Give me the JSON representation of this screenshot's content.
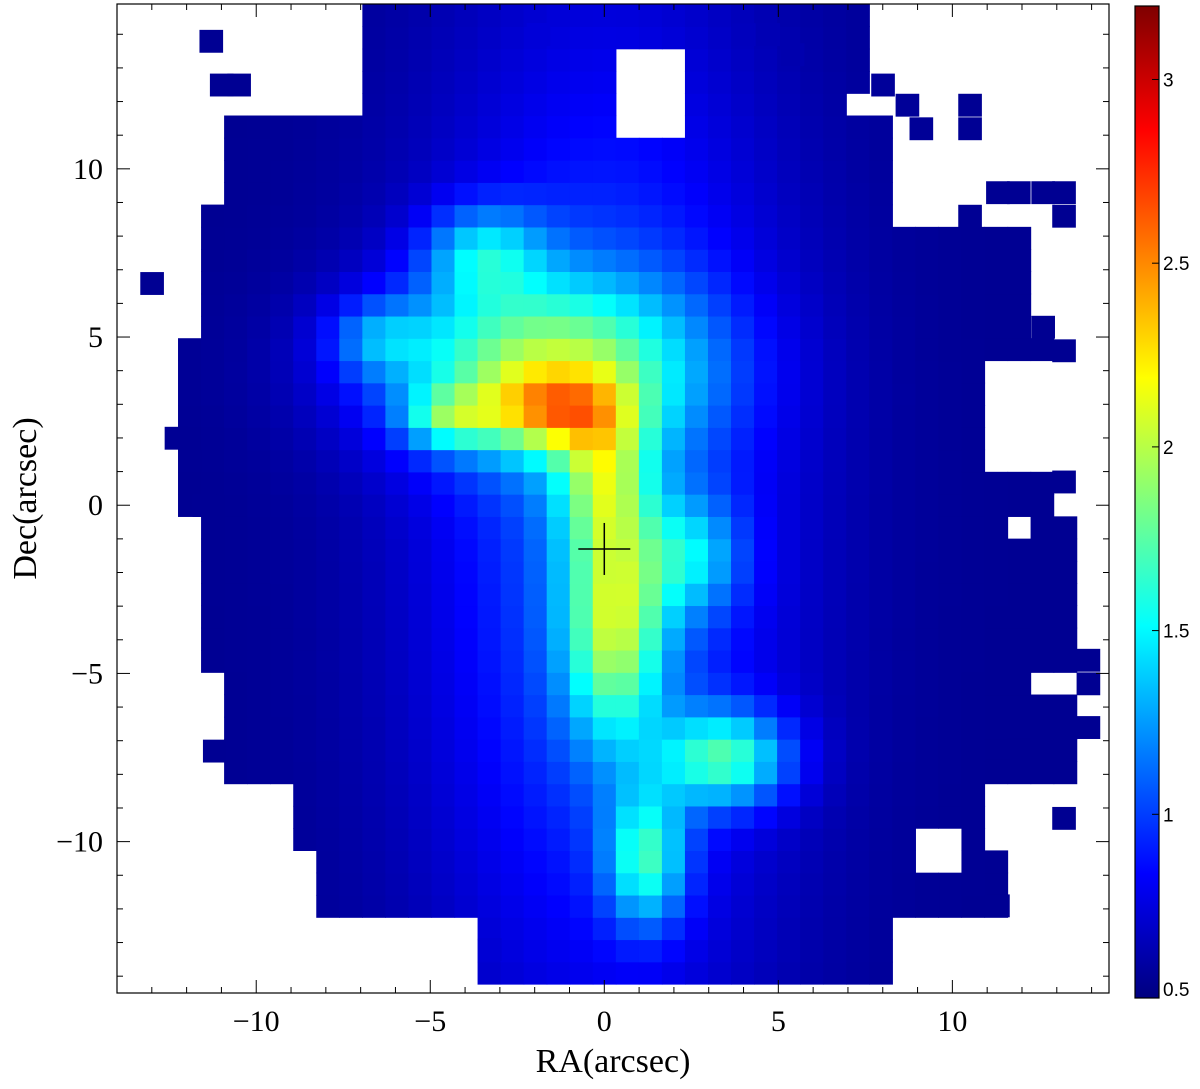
{
  "chart_data": {
    "type": "heatmap",
    "title": "",
    "xlabel": "RA(arcsec)",
    "ylabel": "Dec(arcsec)",
    "xlim": [
      -14,
      14.5
    ],
    "ylim": [
      -14.5,
      14.9
    ],
    "xticks": [
      -10,
      -5,
      0,
      5,
      10
    ],
    "xtick_labels": [
      "−10",
      "−5",
      "0",
      "5",
      "10"
    ],
    "yticks": [
      -10,
      -5,
      0,
      5,
      10
    ],
    "ytick_labels": [
      "−10",
      "−5",
      "0",
      "5",
      "10"
    ],
    "grid": false,
    "pixel_scale_arcsec": 0.662,
    "marker": {
      "symbol": "plus",
      "ra": 0.0,
      "dec": -1.3
    },
    "colorbar": {
      "position": "right",
      "min": 0.5,
      "max": 3.2,
      "ticks": [
        0.5,
        1,
        1.5,
        2,
        2.5,
        3
      ],
      "tick_labels": [
        "0.5",
        "1",
        "1.5",
        "2",
        "2.5",
        "3"
      ],
      "colormap": [
        "#00007f",
        "#0000ff",
        "#007fff",
        "#00ffff",
        "#7fff7f",
        "#ffff00",
        "#ff7f00",
        "#ff0000",
        "#7f0000"
      ]
    },
    "value_field": {
      "background": 0.55,
      "components": [
        {
          "ra": 0.0,
          "dec": -0.5,
          "amplitude": 0.55,
          "sigma_ra": 3.6,
          "sigma_dec": 10.5
        },
        {
          "ra": -2.0,
          "dec": 4.2,
          "amplitude": 1.0,
          "sigma_ra": 3.2,
          "sigma_dec": 1.8
        },
        {
          "ra": -1.5,
          "dec": 2.8,
          "amplitude": 0.8,
          "sigma_ra": 1.4,
          "sigma_dec": 0.8
        },
        {
          "ra": -4.5,
          "dec": 2.6,
          "amplitude": 0.6,
          "sigma_ra": 0.9,
          "sigma_dec": 0.6
        },
        {
          "ra": 0.0,
          "dec": 0.8,
          "amplitude": 0.7,
          "sigma_ra": 0.9,
          "sigma_dec": 1.6
        },
        {
          "ra": 0.3,
          "dec": -3.5,
          "amplitude": 1.0,
          "sigma_ra": 1.0,
          "sigma_dec": 2.4
        },
        {
          "ra": 2.5,
          "dec": -1.5,
          "amplitude": 0.5,
          "sigma_ra": 1.0,
          "sigma_dec": 1.2
        },
        {
          "ra": 3.5,
          "dec": -7.5,
          "amplitude": 0.9,
          "sigma_ra": 1.3,
          "sigma_dec": 1.0
        },
        {
          "ra": 1.2,
          "dec": -10.5,
          "amplitude": 0.8,
          "sigma_ra": 0.8,
          "sigma_dec": 1.4
        },
        {
          "ra": -3.5,
          "dec": 7.5,
          "amplitude": 0.6,
          "sigma_ra": 1.2,
          "sigma_dec": 1.0
        },
        {
          "ra": -6.5,
          "dec": 5.0,
          "amplitude": 0.4,
          "sigma_ra": 1.0,
          "sigma_dec": 0.8
        }
      ]
    },
    "coverage": {
      "rows": [
        {
          "dec_min": 11.5,
          "dec_max": 14.9,
          "ra_min": -6.8,
          "ra_max": 7.5
        },
        {
          "dec_min": 9.0,
          "dec_max": 11.5,
          "ra_min": -10.8,
          "ra_max": 8.3
        },
        {
          "dec_min": 5.0,
          "dec_max": 9.0,
          "ra_min": -11.5,
          "ra_max": 12.0
        },
        {
          "dec_min": 0.0,
          "dec_max": 5.0,
          "ra_min": -12.0,
          "ra_max": 13.2
        },
        {
          "dec_min": -5.0,
          "dec_max": 0.0,
          "ra_min": -11.5,
          "ra_max": 13.5
        },
        {
          "dec_min": -8.0,
          "dec_max": -5.0,
          "ra_min": -11.2,
          "ra_max": 13.5
        },
        {
          "dec_min": -10.0,
          "dec_max": -8.0,
          "ra_min": -9.0,
          "ra_max": 11.0
        },
        {
          "dec_min": -12.0,
          "dec_max": -10.0,
          "ra_min": -8.5,
          "ra_max": 11.3
        },
        {
          "dec_min": -14.0,
          "dec_max": -12.0,
          "ra_min": -3.5,
          "ra_max": 8.3
        }
      ],
      "holes": [
        {
          "ra_min": 0.4,
          "ra_max": 2.4,
          "dec_min": 10.8,
          "dec_max": 13.4
        },
        {
          "ra_min": 7.0,
          "ra_max": 8.0,
          "dec_min": 11.6,
          "dec_max": 12.2
        },
        {
          "ra_min": 8.2,
          "ra_max": 12.5,
          "dec_min": 8.6,
          "dec_max": 10.8
        },
        {
          "ra_min": 10.8,
          "ra_max": 13.2,
          "dec_min": 0.8,
          "dec_max": 4.2
        },
        {
          "ra_min": 11.3,
          "ra_max": 12.2,
          "dec_min": -1.2,
          "dec_max": -0.4
        },
        {
          "ra_min": 8.7,
          "ra_max": 10.3,
          "dec_min": -10.8,
          "dec_max": -9.6
        },
        {
          "ra_min": 12.0,
          "ra_max": 13.3,
          "dec_min": -5.9,
          "dec_max": -5.0
        }
      ],
      "extra_pixels": [
        {
          "ra": -11.3,
          "dec": 13.8
        },
        {
          "ra": -11.0,
          "dec": 12.5
        },
        {
          "ra": -10.5,
          "dec": 12.5
        },
        {
          "ra": -13.0,
          "dec": 6.6
        },
        {
          "ra": -12.3,
          "dec": 2.0
        },
        {
          "ra": -11.5,
          "dec": 0.0
        },
        {
          "ra": -11.2,
          "dec": -7.3
        },
        {
          "ra": -1.9,
          "dec": 14.0
        },
        {
          "ra": 4.0,
          "dec": 14.0
        },
        {
          "ra": 4.7,
          "dec": 14.0
        },
        {
          "ra": 5.4,
          "dec": 13.4
        },
        {
          "ra": 8.0,
          "dec": 12.5
        },
        {
          "ra": 8.7,
          "dec": 11.9
        },
        {
          "ra": 9.1,
          "dec": 11.2
        },
        {
          "ra": 10.5,
          "dec": 11.9
        },
        {
          "ra": 10.5,
          "dec": 11.2
        },
        {
          "ra": 11.3,
          "dec": 9.3
        },
        {
          "ra": 11.9,
          "dec": 9.3
        },
        {
          "ra": 12.6,
          "dec": 9.3
        },
        {
          "ra": 13.2,
          "dec": 9.3
        },
        {
          "ra": 13.2,
          "dec": 8.6
        },
        {
          "ra": 10.5,
          "dec": 8.6
        },
        {
          "ra": 12.6,
          "dec": 5.3
        },
        {
          "ra": 13.2,
          "dec": 4.6
        },
        {
          "ra": 13.2,
          "dec": 0.7
        },
        {
          "ra": 13.9,
          "dec": -4.6
        },
        {
          "ra": 13.9,
          "dec": -5.3
        },
        {
          "ra": 13.9,
          "dec": -6.6
        },
        {
          "ra": 13.2,
          "dec": -6.6
        },
        {
          "ra": 11.9,
          "dec": -6.6
        },
        {
          "ra": 11.3,
          "dec": -7.3
        },
        {
          "ra": 11.9,
          "dec": -7.3
        },
        {
          "ra": 11.3,
          "dec": -7.9
        },
        {
          "ra": 13.2,
          "dec": -9.3
        },
        {
          "ra": 11.3,
          "dec": -11.9
        },
        {
          "ra": -3.3,
          "dec": -13.2
        }
      ]
    }
  }
}
